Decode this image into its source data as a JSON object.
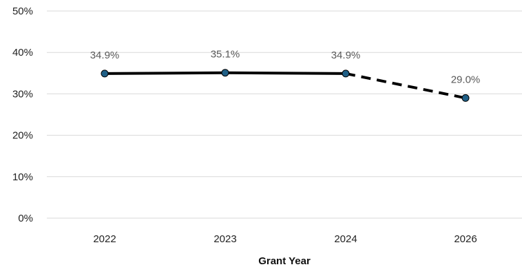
{
  "chart_data": {
    "type": "line",
    "categories": [
      "2022",
      "2023",
      "2024",
      "2026"
    ],
    "values": [
      34.9,
      35.1,
      34.9,
      29.0
    ],
    "data_labels": [
      "34.9%",
      "35.1%",
      "34.9%",
      "29.0%"
    ],
    "segments": [
      {
        "style": "solid",
        "from": "2022",
        "to": "2024"
      },
      {
        "style": "dashed",
        "from": "2024",
        "to": "2026"
      }
    ],
    "xlabel": "Grant Year",
    "ylabel": "",
    "ylim": [
      0,
      50
    ],
    "yticks": [
      0,
      10,
      20,
      30,
      40,
      50
    ],
    "ytick_labels": [
      "0%",
      "10%",
      "20%",
      "30%",
      "40%",
      "50%"
    ],
    "grid": true,
    "legend": "none",
    "colors": {
      "line": "#000000",
      "marker": "#1f5f86",
      "grid": "#d9d9d9"
    }
  }
}
